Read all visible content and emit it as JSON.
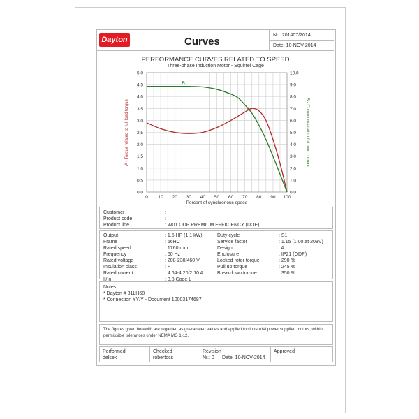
{
  "header": {
    "logo": "Dayton",
    "title": "Curves",
    "nr": "Nr.: 201407/2014",
    "date": "Date: 10-NOV-2014"
  },
  "chart_data": {
    "type": "line",
    "title": "PERFORMANCE CURVES RELATED TO SPEED",
    "subtitle": "Three-phase Induction Motor - Squirrel Cage",
    "xlabel": "Percent of synchronous speed",
    "ylabel": "A - Torque related to full load torque",
    "y2label": "B - Current related to full load current",
    "xlim": [
      0,
      100
    ],
    "ylim": [
      0,
      5
    ],
    "y2lim": [
      0,
      10
    ],
    "xticks": [
      "0",
      "10",
      "20",
      "30",
      "40",
      "50",
      "60",
      "70",
      "80",
      "90",
      "100"
    ],
    "yticks": [
      "0.0",
      "0.5",
      "1.0",
      "1.5",
      "2.0",
      "2.5",
      "3.0",
      "3.5",
      "4.0",
      "4.5",
      "5.0"
    ],
    "y2ticks": [
      "0.0",
      "1.0",
      "2.0",
      "3.0",
      "4.0",
      "5.0",
      "6.0",
      "7.0",
      "8.0",
      "9.0",
      "10.0"
    ],
    "grid": true,
    "series": [
      {
        "name": "A",
        "axis": "left",
        "color": "#b22a2a",
        "x": [
          0,
          10,
          20,
          30,
          40,
          50,
          60,
          70,
          75,
          80,
          85,
          90,
          95,
          100
        ],
        "y": [
          2.9,
          2.65,
          2.5,
          2.45,
          2.5,
          2.7,
          3.0,
          3.35,
          3.5,
          3.4,
          3.0,
          2.2,
          1.2,
          0
        ]
      },
      {
        "name": "B",
        "axis": "right",
        "color": "#2a7a2a",
        "x": [
          0,
          10,
          20,
          30,
          40,
          50,
          60,
          65,
          70,
          75,
          80,
          85,
          90,
          95,
          100
        ],
        "y": [
          8.85,
          8.85,
          8.85,
          8.85,
          8.8,
          8.6,
          8.2,
          7.9,
          7.3,
          6.6,
          5.6,
          4.4,
          3.0,
          1.5,
          0
        ]
      }
    ]
  },
  "customer": {
    "rows": [
      [
        "Customer",
        ":"
      ],
      [
        "Product code",
        ":"
      ],
      [
        "Product line",
        ": W01 ODP PREMIUM EFFICIENCY (DOE)"
      ]
    ]
  },
  "specs": {
    "left": [
      [
        "Output",
        ": 1.5 HP (1.1 kW)"
      ],
      [
        "Frame",
        ": 56HC"
      ],
      [
        "Rated speed",
        ": 1760 rpm"
      ],
      [
        "Frequency",
        ": 60 Hz"
      ],
      [
        "Rated voltage",
        ": 208-230/460 V"
      ],
      [
        "Insulation class",
        ": F"
      ],
      [
        "Rated current",
        ": 4.64-4.20/2.10 A"
      ],
      [
        "Il/In",
        ": 8.8   Code L"
      ]
    ],
    "right": [
      [
        "Duty cycle",
        ": S1"
      ],
      [
        "Service factor",
        ": 1.15   (1.00 at 208V)"
      ],
      [
        "Design",
        ": A"
      ],
      [
        "Enclosure",
        ": IP21 (ODP)"
      ],
      [
        "Locked rotor torque",
        ": 290 %"
      ],
      [
        "Pull up torque",
        ": 245 %"
      ],
      [
        "Breakdown torque",
        ": 350 %"
      ]
    ]
  },
  "notes": {
    "title": "Notes:",
    "items": [
      "* Dayton # 31LH68",
      "* Connection YY/Y - Document 10003174687"
    ]
  },
  "disclaimer": "The figures given herewith are regarded as guaranteed values and applied to sinusoidal  power supplied motors, within permissible tolerances under NEMA MG 1-12.",
  "footer": {
    "performed": "Performed",
    "performed_by": "delsek",
    "checked": "Checked",
    "checked_by": "robertocs",
    "revision": "Revision",
    "rev_nr": "Nr.: 0",
    "rev_date": "Date: 10-NOV-2014",
    "approved": "Approved"
  }
}
